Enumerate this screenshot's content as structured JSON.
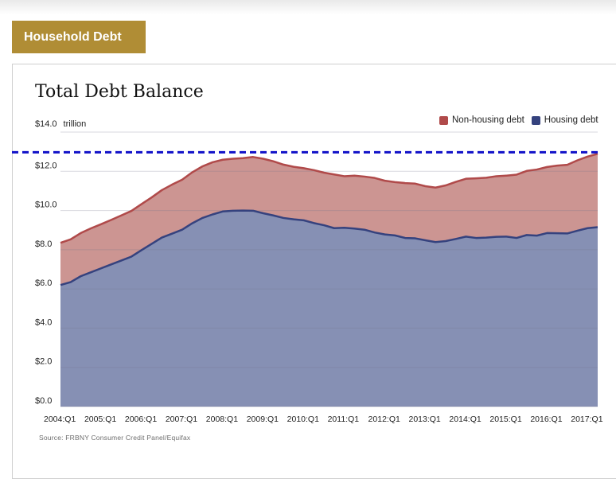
{
  "header": {
    "tag_label": "Household Debt"
  },
  "chart_data": {
    "type": "area",
    "title": "Total Debt Balance",
    "unit_label": "trillion",
    "yticks": [
      "$0.0",
      "$2.0",
      "$4.0",
      "$6.0",
      "$8.0",
      "$10.0",
      "$12.0",
      "$14.0"
    ],
    "ylim": [
      0,
      14
    ],
    "xticks": [
      "2004:Q1",
      "2005:Q1",
      "2006:Q1",
      "2007:Q1",
      "2008:Q1",
      "2009:Q1",
      "2010:Q1",
      "2011:Q1",
      "2012:Q1",
      "2013:Q1",
      "2014:Q1",
      "2015:Q1",
      "2016:Q1",
      "2017:Q1"
    ],
    "x": [
      "2004:Q1",
      "2004:Q2",
      "2004:Q3",
      "2004:Q4",
      "2005:Q1",
      "2005:Q2",
      "2005:Q3",
      "2005:Q4",
      "2006:Q1",
      "2006:Q2",
      "2006:Q3",
      "2006:Q4",
      "2007:Q1",
      "2007:Q2",
      "2007:Q3",
      "2007:Q4",
      "2008:Q1",
      "2008:Q2",
      "2008:Q3",
      "2008:Q4",
      "2009:Q1",
      "2009:Q2",
      "2009:Q3",
      "2009:Q4",
      "2010:Q1",
      "2010:Q2",
      "2010:Q3",
      "2010:Q4",
      "2011:Q1",
      "2011:Q2",
      "2011:Q3",
      "2011:Q4",
      "2012:Q1",
      "2012:Q2",
      "2012:Q3",
      "2012:Q4",
      "2013:Q1",
      "2013:Q2",
      "2013:Q3",
      "2013:Q4",
      "2014:Q1",
      "2014:Q2",
      "2014:Q3",
      "2014:Q4",
      "2015:Q1",
      "2015:Q2",
      "2015:Q3",
      "2015:Q4",
      "2016:Q1",
      "2016:Q2",
      "2016:Q3",
      "2016:Q4",
      "2017:Q1",
      "2017:Q2"
    ],
    "series": [
      {
        "name": "Housing debt",
        "color": "#35427e",
        "fill": "#8690b4",
        "values": [
          6.2,
          6.35,
          6.65,
          6.85,
          7.05,
          7.25,
          7.45,
          7.65,
          7.98,
          8.3,
          8.62,
          8.82,
          9.02,
          9.35,
          9.62,
          9.8,
          9.95,
          9.99,
          10.0,
          9.99,
          9.86,
          9.75,
          9.62,
          9.55,
          9.5,
          9.36,
          9.25,
          9.1,
          9.12,
          9.08,
          9.02,
          8.88,
          8.78,
          8.73,
          8.6,
          8.58,
          8.48,
          8.39,
          8.44,
          8.55,
          8.67,
          8.6,
          8.62,
          8.66,
          8.67,
          8.6,
          8.75,
          8.72,
          8.85,
          8.84,
          8.83,
          8.97,
          9.1,
          9.15
        ]
      },
      {
        "name": "Non-housing debt",
        "color": "#b04a4a",
        "fill": "#cc9592",
        "values": [
          2.15,
          2.18,
          2.2,
          2.24,
          2.25,
          2.27,
          2.3,
          2.33,
          2.35,
          2.37,
          2.42,
          2.5,
          2.55,
          2.6,
          2.63,
          2.66,
          2.64,
          2.65,
          2.67,
          2.74,
          2.78,
          2.76,
          2.72,
          2.68,
          2.66,
          2.7,
          2.68,
          2.74,
          2.63,
          2.7,
          2.71,
          2.78,
          2.74,
          2.72,
          2.8,
          2.79,
          2.76,
          2.78,
          2.84,
          2.91,
          2.95,
          3.04,
          3.05,
          3.09,
          3.11,
          3.23,
          3.27,
          3.37,
          3.37,
          3.45,
          3.5,
          3.59,
          3.65,
          3.74
        ]
      }
    ],
    "reference_line": {
      "value": 12.97,
      "color": "#1010c8",
      "style": "dashed"
    },
    "legend_position": "top-right",
    "grid": true,
    "source": "Source: FRBNY Consumer Credit Panel/Equifax"
  }
}
